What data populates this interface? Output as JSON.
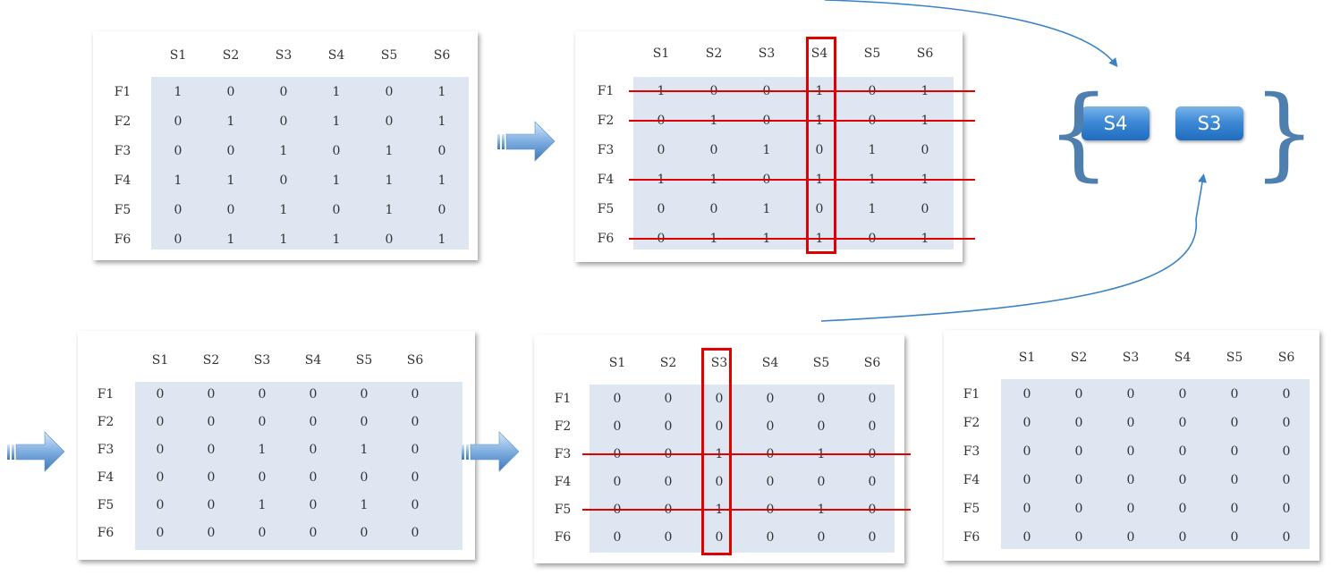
{
  "colors": {
    "strike": "#e00000",
    "highlight_box": "#e00000",
    "cell_bg": "#dde6f1",
    "curve": "#3b82c4",
    "arrow_fill_light": "#c6dcf2",
    "arrow_fill_dark": "#4f88c6"
  },
  "columns": [
    "S1",
    "S2",
    "S3",
    "S4",
    "S5",
    "S6"
  ],
  "rows": [
    "F1",
    "F2",
    "F3",
    "F4",
    "F5",
    "F6"
  ],
  "matrices": [
    {
      "id": "m1",
      "values": [
        [
          "1",
          "0",
          "0",
          "1",
          "0",
          "1"
        ],
        [
          "0",
          "1",
          "0",
          "1",
          "0",
          "1"
        ],
        [
          "0",
          "0",
          "1",
          "0",
          "1",
          "0"
        ],
        [
          "1",
          "1",
          "0",
          "1",
          "1",
          "1"
        ],
        [
          "0",
          "0",
          "1",
          "0",
          "1",
          "0"
        ],
        [
          "0",
          "1",
          "1",
          "1",
          "0",
          "1"
        ]
      ],
      "highlight_col": null,
      "struck_rows": []
    },
    {
      "id": "m2",
      "values": [
        [
          "1",
          "0",
          "0",
          "1",
          "0",
          "1"
        ],
        [
          "0",
          "1",
          "0",
          "1",
          "0",
          "1"
        ],
        [
          "0",
          "0",
          "1",
          "0",
          "1",
          "0"
        ],
        [
          "1",
          "1",
          "0",
          "1",
          "1",
          "1"
        ],
        [
          "0",
          "0",
          "1",
          "0",
          "1",
          "0"
        ],
        [
          "0",
          "1",
          "1",
          "1",
          "0",
          "1"
        ]
      ],
      "highlight_col": "S4",
      "struck_rows": [
        "F1",
        "F2",
        "F4",
        "F6"
      ]
    },
    {
      "id": "m3",
      "values": [
        [
          "0",
          "0",
          "0",
          "0",
          "0",
          "0"
        ],
        [
          "0",
          "0",
          "0",
          "0",
          "0",
          "0"
        ],
        [
          "0",
          "0",
          "1",
          "0",
          "1",
          "0"
        ],
        [
          "0",
          "0",
          "0",
          "0",
          "0",
          "0"
        ],
        [
          "0",
          "0",
          "1",
          "0",
          "1",
          "0"
        ],
        [
          "0",
          "0",
          "0",
          "0",
          "0",
          "0"
        ]
      ],
      "highlight_col": null,
      "struck_rows": []
    },
    {
      "id": "m4",
      "values": [
        [
          "0",
          "0",
          "0",
          "0",
          "0",
          "0"
        ],
        [
          "0",
          "0",
          "0",
          "0",
          "0",
          "0"
        ],
        [
          "0",
          "0",
          "1",
          "0",
          "1",
          "0"
        ],
        [
          "0",
          "0",
          "0",
          "0",
          "0",
          "0"
        ],
        [
          "0",
          "0",
          "1",
          "0",
          "1",
          "0"
        ],
        [
          "0",
          "0",
          "0",
          "0",
          "0",
          "0"
        ]
      ],
      "highlight_col": "S3",
      "struck_rows": [
        "F3",
        "F5"
      ]
    },
    {
      "id": "m5",
      "values": [
        [
          "0",
          "0",
          "0",
          "0",
          "0",
          "0"
        ],
        [
          "0",
          "0",
          "0",
          "0",
          "0",
          "0"
        ],
        [
          "0",
          "0",
          "0",
          "0",
          "0",
          "0"
        ],
        [
          "0",
          "0",
          "0",
          "0",
          "0",
          "0"
        ],
        [
          "0",
          "0",
          "0",
          "0",
          "0",
          "0"
        ],
        [
          "0",
          "0",
          "0",
          "0",
          "0",
          "0"
        ]
      ],
      "highlight_col": null,
      "struck_rows": []
    }
  ],
  "result_set": {
    "open_brace": "{",
    "close_brace": "}",
    "items": [
      "S4",
      "S3"
    ]
  }
}
